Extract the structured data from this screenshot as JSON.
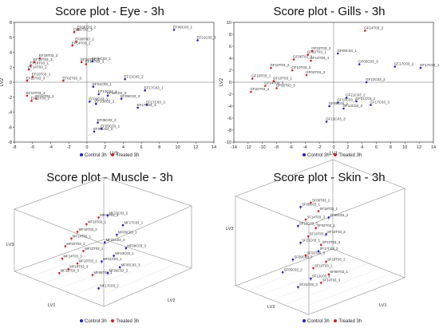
{
  "colors": {
    "control": "#2020c8",
    "treated": "#d42020",
    "axis": "#333333",
    "label": "#222222"
  },
  "legend": {
    "control": "Control 3h",
    "treated": "Treated 3h"
  },
  "chart_data": [
    {
      "id": "eye",
      "type": "scatter",
      "title": "Score plot - Eye - 3h",
      "xlabel": "LV1",
      "ylabel": "LV2",
      "xlim": [
        -8,
        14
      ],
      "ylim": [
        -8,
        8
      ],
      "xticks": [
        -8,
        -6,
        -4,
        -2,
        0,
        2,
        4,
        6,
        8,
        10,
        12,
        14
      ],
      "yticks": [
        -8,
        -6,
        -4,
        -2,
        0,
        2,
        4,
        6,
        8
      ],
      "legend_position": "bottom",
      "points": [
        {
          "x": -1.0,
          "y": 7.0,
          "g": "treated",
          "label": "EF06T03_2"
        },
        {
          "x": -1.4,
          "y": 6.7,
          "g": "treated",
          "label": "EF06T03_3"
        },
        {
          "x": -1.2,
          "y": 5.4,
          "g": "treated",
          "label": "EF06T03_1"
        },
        {
          "x": -1.6,
          "y": 4.9,
          "g": "treated",
          "label": "EF14T03_1"
        },
        {
          "x": -5.2,
          "y": 3.2,
          "g": "treated",
          "label": "EF18T03_2"
        },
        {
          "x": -5.8,
          "y": 2.7,
          "g": "treated",
          "label": "EF18T03_3"
        },
        {
          "x": -6.2,
          "y": 2.2,
          "g": "treated",
          "label": "EF18T03_1"
        },
        {
          "x": -6.4,
          "y": 1.7,
          "g": "treated",
          "label": "EF14T03_2"
        },
        {
          "x": -0.6,
          "y": 2.7,
          "g": "treated",
          "label": "EF02T03_1"
        },
        {
          "x": -0.1,
          "y": 2.4,
          "g": "treated",
          "label": "EF14T03_3"
        },
        {
          "x": -6.0,
          "y": 0.7,
          "g": "treated",
          "label": "EF10T03_1"
        },
        {
          "x": -6.6,
          "y": 0.2,
          "g": "treated",
          "label": "EF22T03_3"
        },
        {
          "x": -2.6,
          "y": 0.2,
          "g": "treated",
          "label": "EF02T03_3"
        },
        {
          "x": -6.6,
          "y": -1.8,
          "g": "treated",
          "label": "EF10T03_3"
        },
        {
          "x": -5.6,
          "y": -2.2,
          "g": "treated",
          "label": "EF22T03_1"
        },
        {
          "x": -6.1,
          "y": -2.5,
          "g": "treated",
          "label": "EF22T03_2"
        },
        {
          "x": 9.6,
          "y": 7.0,
          "g": "control",
          "label": "EF06C03_1"
        },
        {
          "x": 12.2,
          "y": 5.6,
          "g": "control",
          "label": "EF21C03_3"
        },
        {
          "x": 0.6,
          "y": 2.8,
          "g": "control",
          "label": "EF09C03_2"
        },
        {
          "x": 4.2,
          "y": 0.4,
          "g": "control",
          "label": "EF21C03_2"
        },
        {
          "x": 0.7,
          "y": -0.6,
          "g": "control",
          "label": "EF21C03_1"
        },
        {
          "x": 1.3,
          "y": -1.6,
          "g": "control",
          "label": "EF13C03_1"
        },
        {
          "x": 2.3,
          "y": -1.8,
          "g": "control",
          "label": "EF13C03_3"
        },
        {
          "x": 6.4,
          "y": -1.1,
          "g": "control",
          "label": "EF17C03_1"
        },
        {
          "x": 3.8,
          "y": -2.2,
          "g": "control",
          "label": "EF09C03_3"
        },
        {
          "x": 0.3,
          "y": -2.6,
          "g": "control",
          "label": "EF09C03_1"
        },
        {
          "x": 1.0,
          "y": -2.9,
          "g": "control",
          "label": "EF13C03_2"
        },
        {
          "x": 6.6,
          "y": -3.0,
          "g": "control",
          "label": "EF17C03_2"
        },
        {
          "x": 5.6,
          "y": -3.4,
          "g": "control",
          "label": "EF17C03_3"
        },
        {
          "x": 1.2,
          "y": -5.4,
          "g": "control",
          "label": "EF05C03_2"
        },
        {
          "x": 1.6,
          "y": -6.2,
          "g": "control",
          "label": "EF05C03_1"
        },
        {
          "x": 0.8,
          "y": -6.6,
          "g": "control",
          "label": "EF05C03_3"
        }
      ]
    },
    {
      "id": "gills",
      "type": "scatter",
      "title": "Score plot - Gills - 3h",
      "xlabel": "LV1",
      "ylabel": "LV2",
      "xlim": [
        -14,
        14
      ],
      "ylim": [
        -10,
        10
      ],
      "xticks": [
        -14,
        -12,
        -10,
        -8,
        -6,
        -4,
        -2,
        0,
        2,
        4,
        6,
        8,
        10,
        12,
        14
      ],
      "yticks": [
        -10,
        -8,
        -6,
        -4,
        -2,
        0,
        2,
        4,
        6,
        8,
        10
      ],
      "legend_position": "bottom",
      "points": [
        {
          "x": 4.4,
          "y": 8.6,
          "g": "treated",
          "label": "GF14T03_2"
        },
        {
          "x": -3.0,
          "y": 5.2,
          "g": "treated",
          "label": "GF22T03_3"
        },
        {
          "x": -3.6,
          "y": 4.6,
          "g": "treated",
          "label": "GF22T03_1"
        },
        {
          "x": -5.6,
          "y": 3.8,
          "g": "treated",
          "label": "GF06T03_3"
        },
        {
          "x": -3.2,
          "y": 3.6,
          "g": "treated",
          "label": "GF14T03_1"
        },
        {
          "x": -8.8,
          "y": 2.4,
          "g": "treated",
          "label": "GF10T03_2"
        },
        {
          "x": -5.8,
          "y": 2.0,
          "g": "treated",
          "label": "GF10T03_3"
        },
        {
          "x": -3.8,
          "y": 1.2,
          "g": "treated",
          "label": "GF02T03_3"
        },
        {
          "x": -11.4,
          "y": 0.6,
          "g": "treated",
          "label": "GF18T03_1"
        },
        {
          "x": -8.4,
          "y": 0.2,
          "g": "treated",
          "label": "GF10T03_1"
        },
        {
          "x": -9.6,
          "y": -0.6,
          "g": "treated",
          "label": "GF14T03_3"
        },
        {
          "x": -8.0,
          "y": -1.0,
          "g": "treated",
          "label": "GF18T03_3"
        },
        {
          "x": -11.6,
          "y": -1.6,
          "g": "treated",
          "label": "GF22T03_2"
        },
        {
          "x": 8.6,
          "y": 2.6,
          "g": "control",
          "label": "GF17C03_2"
        },
        {
          "x": 12.2,
          "y": 2.4,
          "g": "control",
          "label": "GF17C03_1"
        },
        {
          "x": 3.6,
          "y": 3.0,
          "g": "control",
          "label": "GF05C03_3"
        },
        {
          "x": 0.6,
          "y": 4.8,
          "g": "control",
          "label": "GF09C03_1"
        },
        {
          "x": 4.6,
          "y": 0.0,
          "g": "control",
          "label": "GF13C03_2"
        },
        {
          "x": 1.8,
          "y": -2.6,
          "g": "control",
          "label": "GF21C03_2"
        },
        {
          "x": 3.2,
          "y": -3.2,
          "g": "control",
          "label": "GF21C03_1"
        },
        {
          "x": 0.6,
          "y": -3.4,
          "g": "control",
          "label": "GF13C03_1"
        },
        {
          "x": 5.2,
          "y": -3.8,
          "g": "control",
          "label": "GF17C03_3"
        },
        {
          "x": -0.6,
          "y": -4.0,
          "g": "control",
          "label": "GF05C03_1"
        },
        {
          "x": 1.4,
          "y": -4.4,
          "g": "control",
          "label": "GF13C03_3"
        },
        {
          "x": -1.0,
          "y": -6.6,
          "g": "control",
          "label": "GF13C03_3"
        }
      ]
    },
    {
      "id": "muscle",
      "type": "scatter",
      "title": "Score plot - Muscle - 3h",
      "xlabel": "LV1",
      "ylabel": "LV2",
      "zlabel": "LV3",
      "projection": "3d",
      "legend_position": "bottom",
      "points": [
        {
          "px": 0.44,
          "py": 0.12,
          "g": "treated",
          "label": "MF06T03_3"
        },
        {
          "px": 0.36,
          "py": 0.19,
          "g": "treated",
          "label": "MF18T03_1"
        },
        {
          "px": 0.3,
          "py": 0.27,
          "g": "treated",
          "label": "MF10T03_2"
        },
        {
          "px": 0.26,
          "py": 0.34,
          "g": "treated",
          "label": "MF14T03_1"
        },
        {
          "px": 0.22,
          "py": 0.42,
          "g": "treated",
          "label": "MF02T03_2"
        },
        {
          "px": 0.34,
          "py": 0.47,
          "g": "treated",
          "label": "MF22T03_1"
        },
        {
          "px": 0.2,
          "py": 0.55,
          "g": "treated",
          "label": "MF14T03_3"
        },
        {
          "px": 0.3,
          "py": 0.6,
          "g": "treated",
          "label": "MF10T03_1"
        },
        {
          "px": 0.24,
          "py": 0.66,
          "g": "treated",
          "label": "MF18T03_3"
        },
        {
          "px": 0.4,
          "py": 0.72,
          "g": "treated",
          "label": "MF06T03_1"
        },
        {
          "px": 0.18,
          "py": 0.7,
          "g": "treated",
          "label": "MF22T03_3"
        },
        {
          "px": 0.5,
          "py": 0.1,
          "g": "control",
          "label": "MF13C03_2"
        },
        {
          "px": 0.6,
          "py": 0.2,
          "g": "control",
          "label": "MF17C03_1"
        },
        {
          "px": 0.56,
          "py": 0.3,
          "g": "control",
          "label": "MF05C03_1"
        },
        {
          "px": 0.48,
          "py": 0.38,
          "g": "control",
          "label": "MF21C03_2"
        },
        {
          "px": 0.62,
          "py": 0.44,
          "g": "control",
          "label": "MF09C03_3"
        },
        {
          "px": 0.54,
          "py": 0.52,
          "g": "control",
          "label": "MF13C03_1"
        },
        {
          "px": 0.46,
          "py": 0.58,
          "g": "control",
          "label": "MF21C03_1"
        },
        {
          "px": 0.58,
          "py": 0.64,
          "g": "control",
          "label": "MF05C03_3"
        },
        {
          "px": 0.5,
          "py": 0.7,
          "g": "control",
          "label": "MF09C03_2"
        },
        {
          "px": 0.44,
          "py": 0.86,
          "g": "control",
          "label": "MF17C03_2"
        }
      ]
    },
    {
      "id": "skin",
      "type": "scatter",
      "title": "Score plot - Skin - 3h",
      "xlabel": "LV2",
      "ylabel": "LV1",
      "zlabel": "LV3",
      "projection": "3d",
      "legend_position": "bottom",
      "points": [
        {
          "px": 0.34,
          "py": 0.06,
          "g": "treated",
          "label": "SF06T03_2"
        },
        {
          "px": 0.4,
          "py": 0.14,
          "g": "treated",
          "label": "SF18T03_1"
        },
        {
          "px": 0.3,
          "py": 0.22,
          "g": "treated",
          "label": "SF14T03_3"
        },
        {
          "px": 0.38,
          "py": 0.3,
          "g": "treated",
          "label": "SF02T03_1"
        },
        {
          "px": 0.32,
          "py": 0.38,
          "g": "treated",
          "label": "SF10T03_2"
        },
        {
          "px": 0.42,
          "py": 0.46,
          "g": "treated",
          "label": "SF22T03_3"
        },
        {
          "px": 0.3,
          "py": 0.56,
          "g": "treated",
          "label": "SF02T03_3"
        },
        {
          "px": 0.46,
          "py": 0.62,
          "g": "treated",
          "label": "SF18T03_2"
        },
        {
          "px": 0.36,
          "py": 0.68,
          "g": "treated",
          "label": "SF10T03_1"
        },
        {
          "px": 0.48,
          "py": 0.74,
          "g": "treated",
          "label": "SF06T03_1"
        },
        {
          "px": 0.42,
          "py": 0.82,
          "g": "treated",
          "label": "SF14T03_3"
        },
        {
          "px": 0.26,
          "py": 0.1,
          "g": "control",
          "label": "SF05C03_1"
        },
        {
          "px": 0.48,
          "py": 0.2,
          "g": "control",
          "label": "SF09C03_2"
        },
        {
          "px": 0.24,
          "py": 0.28,
          "g": "control",
          "label": "SF13C03_3"
        },
        {
          "px": 0.46,
          "py": 0.36,
          "g": "control",
          "label": "SF10T03_3"
        },
        {
          "px": 0.26,
          "py": 0.44,
          "g": "control",
          "label": "SF21C03_1"
        },
        {
          "px": 0.4,
          "py": 0.52,
          "g": "control",
          "label": "SF17C03_2"
        },
        {
          "px": 0.2,
          "py": 0.6,
          "g": "control",
          "label": "SF09C03_3"
        },
        {
          "px": 0.12,
          "py": 0.72,
          "g": "control",
          "label": "SF05C03_2"
        },
        {
          "px": 0.34,
          "py": 0.78,
          "g": "control",
          "label": "SF13C03_1"
        },
        {
          "px": 0.24,
          "py": 0.86,
          "g": "control",
          "label": "SF21C03_3"
        }
      ]
    }
  ]
}
